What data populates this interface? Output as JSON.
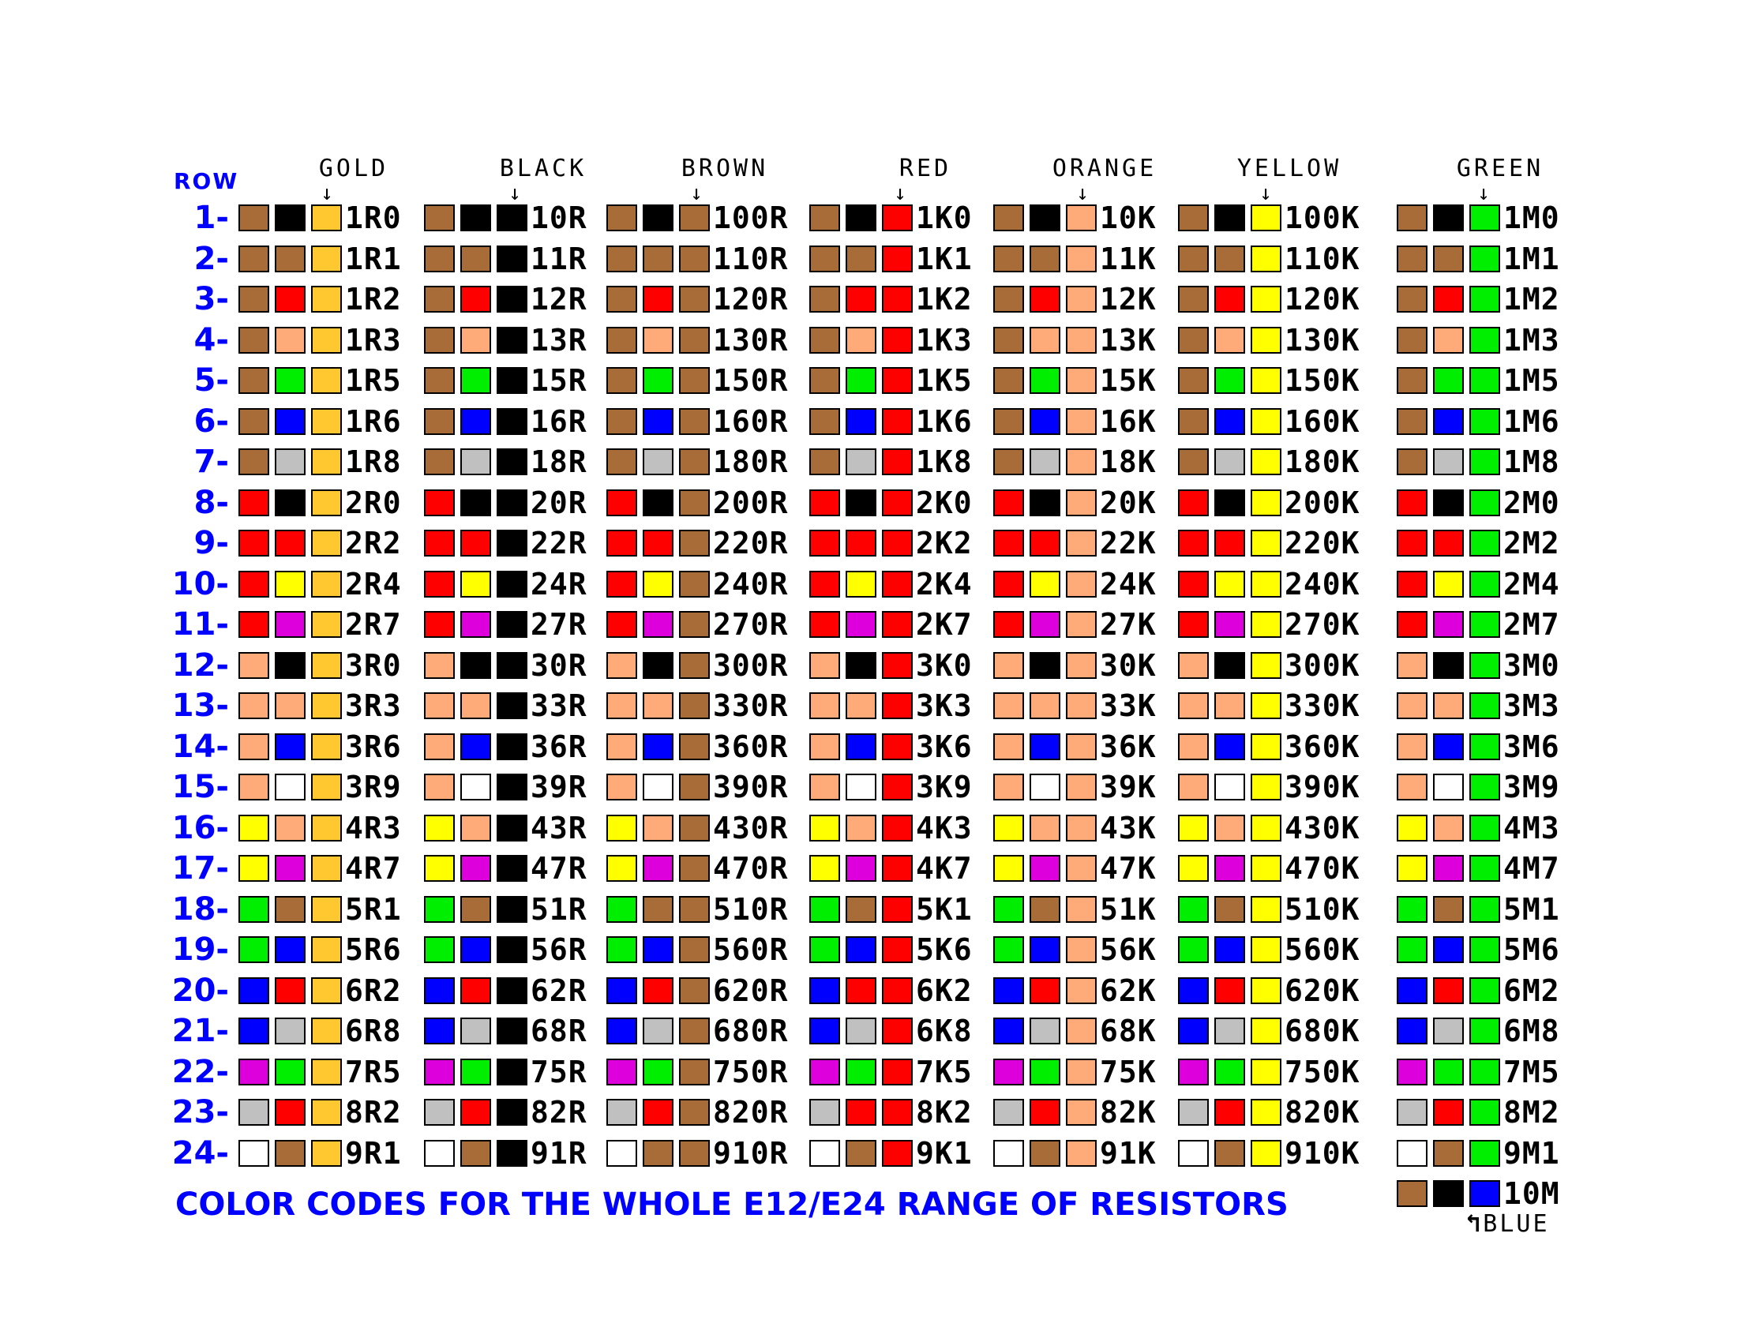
{
  "header": {
    "row_label": "ROW",
    "multipliers": [
      "GOLD",
      "BLACK",
      "BROWN",
      "RED",
      "ORANGE",
      "YELLOW",
      "GREEN"
    ]
  },
  "colors": {
    "black": "#000000",
    "brown": "#a86c38",
    "red": "#ff0000",
    "orange": "#ffaa78",
    "yellow": "#ffff00",
    "green": "#00ee00",
    "blue": "#0000ff",
    "violet": "#dd00dd",
    "grey": "#c0c0c0",
    "white": "#ffffff",
    "gold": "#ffc830"
  },
  "multiplier_colors": [
    "gold",
    "black",
    "brown",
    "red",
    "orange",
    "yellow",
    "green"
  ],
  "rows": [
    {
      "num": "1-",
      "bands": [
        "brown",
        "black"
      ],
      "values": [
        "1R0",
        "10R",
        "100R",
        "1K0",
        "10K",
        "100K",
        "1M0"
      ]
    },
    {
      "num": "2-",
      "bands": [
        "brown",
        "brown"
      ],
      "values": [
        "1R1",
        "11R",
        "110R",
        "1K1",
        "11K",
        "110K",
        "1M1"
      ]
    },
    {
      "num": "3-",
      "bands": [
        "brown",
        "red"
      ],
      "values": [
        "1R2",
        "12R",
        "120R",
        "1K2",
        "12K",
        "120K",
        "1M2"
      ]
    },
    {
      "num": "4-",
      "bands": [
        "brown",
        "orange"
      ],
      "values": [
        "1R3",
        "13R",
        "130R",
        "1K3",
        "13K",
        "130K",
        "1M3"
      ]
    },
    {
      "num": "5-",
      "bands": [
        "brown",
        "green"
      ],
      "values": [
        "1R5",
        "15R",
        "150R",
        "1K5",
        "15K",
        "150K",
        "1M5"
      ]
    },
    {
      "num": "6-",
      "bands": [
        "brown",
        "blue"
      ],
      "values": [
        "1R6",
        "16R",
        "160R",
        "1K6",
        "16K",
        "160K",
        "1M6"
      ]
    },
    {
      "num": "7-",
      "bands": [
        "brown",
        "grey"
      ],
      "values": [
        "1R8",
        "18R",
        "180R",
        "1K8",
        "18K",
        "180K",
        "1M8"
      ]
    },
    {
      "num": "8-",
      "bands": [
        "red",
        "black"
      ],
      "values": [
        "2R0",
        "20R",
        "200R",
        "2K0",
        "20K",
        "200K",
        "2M0"
      ]
    },
    {
      "num": "9-",
      "bands": [
        "red",
        "red"
      ],
      "values": [
        "2R2",
        "22R",
        "220R",
        "2K2",
        "22K",
        "220K",
        "2M2"
      ]
    },
    {
      "num": "10-",
      "bands": [
        "red",
        "yellow"
      ],
      "values": [
        "2R4",
        "24R",
        "240R",
        "2K4",
        "24K",
        "240K",
        "2M4"
      ]
    },
    {
      "num": "11-",
      "bands": [
        "red",
        "violet"
      ],
      "values": [
        "2R7",
        "27R",
        "270R",
        "2K7",
        "27K",
        "270K",
        "2M7"
      ]
    },
    {
      "num": "12-",
      "bands": [
        "orange",
        "black"
      ],
      "values": [
        "3R0",
        "30R",
        "300R",
        "3K0",
        "30K",
        "300K",
        "3M0"
      ]
    },
    {
      "num": "13-",
      "bands": [
        "orange",
        "orange"
      ],
      "values": [
        "3R3",
        "33R",
        "330R",
        "3K3",
        "33K",
        "330K",
        "3M3"
      ]
    },
    {
      "num": "14-",
      "bands": [
        "orange",
        "blue"
      ],
      "values": [
        "3R6",
        "36R",
        "360R",
        "3K6",
        "36K",
        "360K",
        "3M6"
      ]
    },
    {
      "num": "15-",
      "bands": [
        "orange",
        "white"
      ],
      "values": [
        "3R9",
        "39R",
        "390R",
        "3K9",
        "39K",
        "390K",
        "3M9"
      ]
    },
    {
      "num": "16-",
      "bands": [
        "yellow",
        "orange"
      ],
      "values": [
        "4R3",
        "43R",
        "430R",
        "4K3",
        "43K",
        "430K",
        "4M3"
      ]
    },
    {
      "num": "17-",
      "bands": [
        "yellow",
        "violet"
      ],
      "values": [
        "4R7",
        "47R",
        "470R",
        "4K7",
        "47K",
        "470K",
        "4M7"
      ]
    },
    {
      "num": "18-",
      "bands": [
        "green",
        "brown"
      ],
      "values": [
        "5R1",
        "51R",
        "510R",
        "5K1",
        "51K",
        "510K",
        "5M1"
      ]
    },
    {
      "num": "19-",
      "bands": [
        "green",
        "blue"
      ],
      "values": [
        "5R6",
        "56R",
        "560R",
        "5K6",
        "56K",
        "560K",
        "5M6"
      ]
    },
    {
      "num": "20-",
      "bands": [
        "blue",
        "red"
      ],
      "values": [
        "6R2",
        "62R",
        "620R",
        "6K2",
        "62K",
        "620K",
        "6M2"
      ]
    },
    {
      "num": "21-",
      "bands": [
        "blue",
        "grey"
      ],
      "values": [
        "6R8",
        "68R",
        "680R",
        "6K8",
        "68K",
        "680K",
        "6M8"
      ]
    },
    {
      "num": "22-",
      "bands": [
        "violet",
        "green"
      ],
      "values": [
        "7R5",
        "75R",
        "750R",
        "7K5",
        "75K",
        "750K",
        "7M5"
      ]
    },
    {
      "num": "23-",
      "bands": [
        "grey",
        "red"
      ],
      "values": [
        "8R2",
        "82R",
        "820R",
        "8K2",
        "82K",
        "820K",
        "8M2"
      ]
    },
    {
      "num": "24-",
      "bands": [
        "white",
        "brown"
      ],
      "values": [
        "9R1",
        "91R",
        "910R",
        "9K1",
        "91K",
        "910K",
        "9M1"
      ]
    }
  ],
  "extra": {
    "bands": [
      "brown",
      "black",
      "blue"
    ],
    "value": "10M",
    "note": "BLUE"
  },
  "title": "COLOR CODES FOR THE WHOLE E12/E24 RANGE OF RESISTORS"
}
